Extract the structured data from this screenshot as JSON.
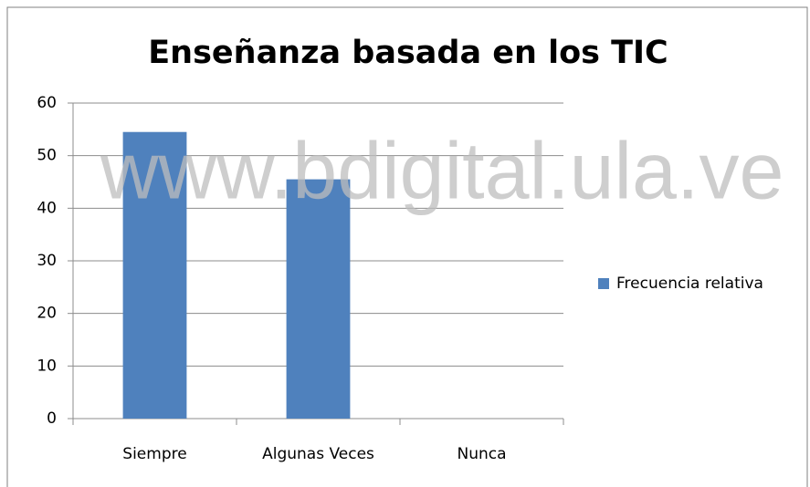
{
  "chart_data": {
    "type": "bar",
    "title": "Enseñanza basada en los TIC",
    "categories": [
      "Siempre",
      "Algunas Veces",
      "Nunca"
    ],
    "series": [
      {
        "name": "Frecuencia relativa",
        "color": "#4f81bd",
        "values": [
          54.5,
          45.5,
          0
        ]
      }
    ],
    "ylim": [
      0,
      60
    ],
    "yticks": [
      0,
      10,
      20,
      30,
      40,
      50,
      60
    ],
    "grid": true,
    "legend": "right",
    "watermark": "www.bdigital.ula.ve"
  }
}
